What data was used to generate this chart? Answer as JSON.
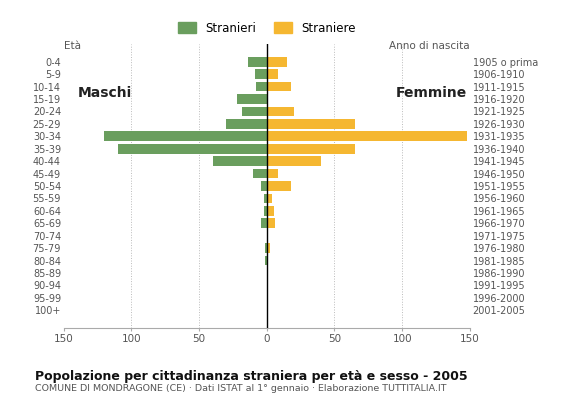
{
  "age_groups": [
    "0-4",
    "5-9",
    "10-14",
    "15-19",
    "20-24",
    "25-29",
    "30-34",
    "35-39",
    "40-44",
    "45-49",
    "50-54",
    "55-59",
    "60-64",
    "65-69",
    "70-74",
    "75-79",
    "80-84",
    "85-89",
    "90-94",
    "95-99",
    "100+"
  ],
  "birth_years": [
    "2001-2005",
    "1996-2000",
    "1991-1995",
    "1986-1990",
    "1981-1985",
    "1976-1980",
    "1971-1975",
    "1966-1970",
    "1961-1965",
    "1956-1960",
    "1951-1955",
    "1946-1950",
    "1941-1945",
    "1936-1940",
    "1931-1935",
    "1926-1930",
    "1921-1925",
    "1916-1920",
    "1911-1915",
    "1906-1910",
    "1905 o prima"
  ],
  "males": [
    14,
    9,
    8,
    22,
    18,
    30,
    120,
    110,
    40,
    10,
    4,
    2,
    2,
    4,
    0,
    1,
    1,
    0,
    0,
    0,
    0
  ],
  "females": [
    15,
    8,
    18,
    0,
    20,
    65,
    148,
    65,
    40,
    8,
    18,
    4,
    5,
    6,
    1,
    2,
    1,
    0,
    0,
    0,
    0
  ],
  "male_color": "#6a9e5e",
  "female_color": "#f5b731",
  "background_color": "#ffffff",
  "grid_color": "#bbbbbb",
  "title": "Popolazione per cittadinanza straniera per età e sesso - 2005",
  "subtitle": "COMUNE DI MONDRAGONE (CE) · Dati ISTAT al 1° gennaio · Elaborazione TUTTITALIA.IT",
  "legend_males": "Stranieri",
  "legend_females": "Straniere",
  "label_eta": "Età",
  "label_anno": "Anno di nascita",
  "label_maschi": "Maschi",
  "label_femmine": "Femmine",
  "xlim": 150,
  "xticks": [
    -150,
    -100,
    -50,
    0,
    50,
    100,
    150
  ]
}
